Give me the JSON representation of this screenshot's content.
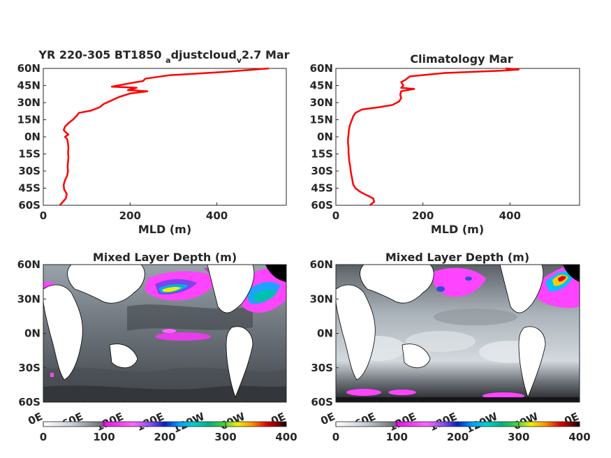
{
  "chart_data": [
    {
      "type": "line",
      "title_main": "YR 220-305 BT1850",
      "title_sub1": "a",
      "title_mid": "djustcloud",
      "title_sub2": "v",
      "title_end": "2.7 Mar",
      "xlabel": "MLD (m)",
      "xlim": [
        0,
        560
      ],
      "ylim": [
        -60,
        60
      ],
      "xticks": [
        "0",
        "200",
        "400"
      ],
      "yticks": [
        "60N",
        "45N",
        "30N",
        "15N",
        "0N",
        "15S",
        "30S",
        "45S",
        "60S"
      ],
      "series": [
        {
          "color": "#ff0000",
          "points": [
            [
              38,
              -60
            ],
            [
              45,
              -57
            ],
            [
              52,
              -54
            ],
            [
              54,
              -50
            ],
            [
              48,
              -46
            ],
            [
              47,
              -42
            ],
            [
              50,
              -38
            ],
            [
              55,
              -34
            ],
            [
              57,
              -30
            ],
            [
              56,
              -26
            ],
            [
              57,
              -22
            ],
            [
              58,
              -18
            ],
            [
              57,
              -14
            ],
            [
              58,
              -10
            ],
            [
              57,
              -6
            ],
            [
              55,
              -2
            ],
            [
              50,
              0
            ],
            [
              58,
              2
            ],
            [
              52,
              4
            ],
            [
              47,
              6
            ],
            [
              50,
              9
            ],
            [
              58,
              12
            ],
            [
              68,
              15
            ],
            [
              76,
              18
            ],
            [
              82,
              21
            ],
            [
              110,
              23
            ],
            [
              130,
              26
            ],
            [
              140,
              29
            ],
            [
              158,
              32
            ],
            [
              175,
              35
            ],
            [
              200,
              38
            ],
            [
              240,
              40
            ],
            [
              195,
              41
            ],
            [
              215,
              43
            ],
            [
              158,
              44
            ],
            [
              172,
              45
            ],
            [
              200,
              47
            ],
            [
              230,
              49
            ],
            [
              235,
              51
            ],
            [
              290,
              54
            ],
            [
              420,
              57
            ],
            [
              520,
              60
            ]
          ]
        }
      ]
    },
    {
      "type": "line",
      "title": "Climatology Mar",
      "xlabel": "MLD (m)",
      "xlim": [
        0,
        560
      ],
      "ylim": [
        -60,
        60
      ],
      "xticks": [
        "0",
        "200",
        "400"
      ],
      "yticks": [
        "60N",
        "45N",
        "30N",
        "15N",
        "0N",
        "15S",
        "30S",
        "45S",
        "60S"
      ],
      "series": [
        {
          "color": "#ff0000",
          "points": [
            [
              78,
              -60
            ],
            [
              88,
              -57
            ],
            [
              86,
              -54
            ],
            [
              70,
              -51
            ],
            [
              55,
              -48
            ],
            [
              45,
              -45
            ],
            [
              40,
              -42
            ],
            [
              38,
              -38
            ],
            [
              36,
              -34
            ],
            [
              34,
              -30
            ],
            [
              33,
              -26
            ],
            [
              31,
              -22
            ],
            [
              30,
              -18
            ],
            [
              29,
              -14
            ],
            [
              29,
              -10
            ],
            [
              28,
              -6
            ],
            [
              28,
              -2
            ],
            [
              29,
              2
            ],
            [
              30,
              6
            ],
            [
              32,
              10
            ],
            [
              36,
              14
            ],
            [
              40,
              18
            ],
            [
              45,
              21
            ],
            [
              60,
              24
            ],
            [
              100,
              26
            ],
            [
              130,
              28
            ],
            [
              145,
              31
            ],
            [
              150,
              34
            ],
            [
              148,
              37
            ],
            [
              150,
              40
            ],
            [
              180,
              42
            ],
            [
              150,
              43
            ],
            [
              155,
              45
            ],
            [
              150,
              48
            ],
            [
              160,
              50
            ],
            [
              170,
              53
            ],
            [
              250,
              56
            ],
            [
              380,
              58
            ],
            [
              420,
              59
            ],
            [
              390,
              60
            ]
          ]
        }
      ]
    },
    {
      "type": "heatmap",
      "title": "Mixed Layer Depth (m)",
      "xticks": [
        "0E",
        "60E",
        "120E",
        "180E",
        "120W",
        "60W",
        "0E"
      ],
      "yticks": [
        "60N",
        "30N",
        "0N",
        "30S",
        "60S"
      ],
      "colorbar_ticks": [
        "0",
        "100",
        "200",
        "300",
        "400"
      ],
      "clim": [
        0,
        400
      ]
    },
    {
      "type": "heatmap",
      "title": "Mixed Layer Depth (m)",
      "xticks": [
        "0E",
        "60E",
        "120E",
        "180E",
        "120W",
        "60W",
        "0E"
      ],
      "yticks": [
        "60N",
        "30N",
        "0N",
        "30S",
        "60S"
      ],
      "colorbar_ticks": [
        "0",
        "100",
        "200",
        "300",
        "400"
      ],
      "clim": [
        0,
        400
      ]
    }
  ]
}
